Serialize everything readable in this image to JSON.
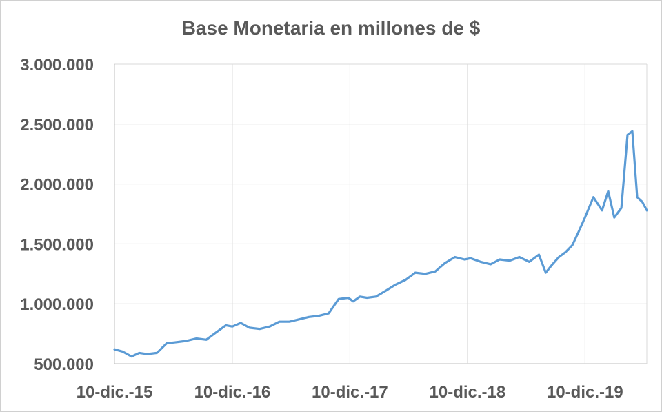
{
  "chart_data": {
    "type": "line",
    "title": "Base Monetaria en millones de $",
    "xlabel": "",
    "ylabel": "",
    "ylim": [
      500000,
      3000000
    ],
    "y_ticks": [
      500000,
      1000000,
      1500000,
      2000000,
      2500000,
      3000000
    ],
    "y_tick_labels": [
      "500.000",
      "1.000.000",
      "1.500.000",
      "2.000.000",
      "2.500.000",
      "3.000.000"
    ],
    "x_range": [
      "2015-12-10",
      "2020-06-19"
    ],
    "x_ticks": [
      "2015-12-10",
      "2016-12-10",
      "2017-12-10",
      "2018-12-10",
      "2019-12-10"
    ],
    "x_tick_labels": [
      "10-dic.-15",
      "10-dic.-16",
      "10-dic.-17",
      "10-dic.-18",
      "10-dic.-19"
    ],
    "grid": true,
    "legend": "none",
    "series_color": "#5b9bd5",
    "series": [
      {
        "x": [
          "2015-12-10",
          "2016-01-05",
          "2016-02-01",
          "2016-02-25",
          "2016-03-20",
          "2016-04-20",
          "2016-05-20",
          "2016-06-20",
          "2016-07-20",
          "2016-08-20",
          "2016-09-20",
          "2016-10-20",
          "2016-11-20",
          "2016-12-10",
          "2017-01-05",
          "2017-02-01",
          "2017-03-05",
          "2017-04-05",
          "2017-05-05",
          "2017-06-05",
          "2017-07-05",
          "2017-08-05",
          "2017-09-05",
          "2017-10-05",
          "2017-11-05",
          "2017-12-05",
          "2017-12-20",
          "2018-01-10",
          "2018-02-01",
          "2018-03-01",
          "2018-04-01",
          "2018-05-01",
          "2018-06-01",
          "2018-07-01",
          "2018-08-01",
          "2018-09-01",
          "2018-10-01",
          "2018-11-01",
          "2018-12-01",
          "2018-12-20",
          "2019-01-20",
          "2019-02-20",
          "2019-03-20",
          "2019-04-20",
          "2019-05-20",
          "2019-06-20",
          "2019-07-20",
          "2019-08-10",
          "2019-08-31",
          "2019-09-20",
          "2019-10-10",
          "2019-11-01",
          "2019-11-20",
          "2019-12-10",
          "2020-01-05",
          "2020-02-01",
          "2020-02-20",
          "2020-03-10",
          "2020-04-01",
          "2020-04-20",
          "2020-05-05",
          "2020-05-20",
          "2020-06-05",
          "2020-06-19"
        ],
        "values": [
          620000,
          600000,
          560000,
          590000,
          580000,
          590000,
          670000,
          680000,
          690000,
          710000,
          700000,
          760000,
          820000,
          810000,
          840000,
          800000,
          790000,
          810000,
          850000,
          850000,
          870000,
          890000,
          900000,
          920000,
          1040000,
          1050000,
          1020000,
          1060000,
          1050000,
          1060000,
          1110000,
          1160000,
          1200000,
          1260000,
          1250000,
          1270000,
          1340000,
          1390000,
          1370000,
          1380000,
          1350000,
          1330000,
          1370000,
          1360000,
          1390000,
          1350000,
          1410000,
          1260000,
          1330000,
          1390000,
          1430000,
          1490000,
          1600000,
          1720000,
          1890000,
          1780000,
          1940000,
          1720000,
          1800000,
          2410000,
          2440000,
          1890000,
          1850000,
          1780000
        ]
      }
    ]
  }
}
